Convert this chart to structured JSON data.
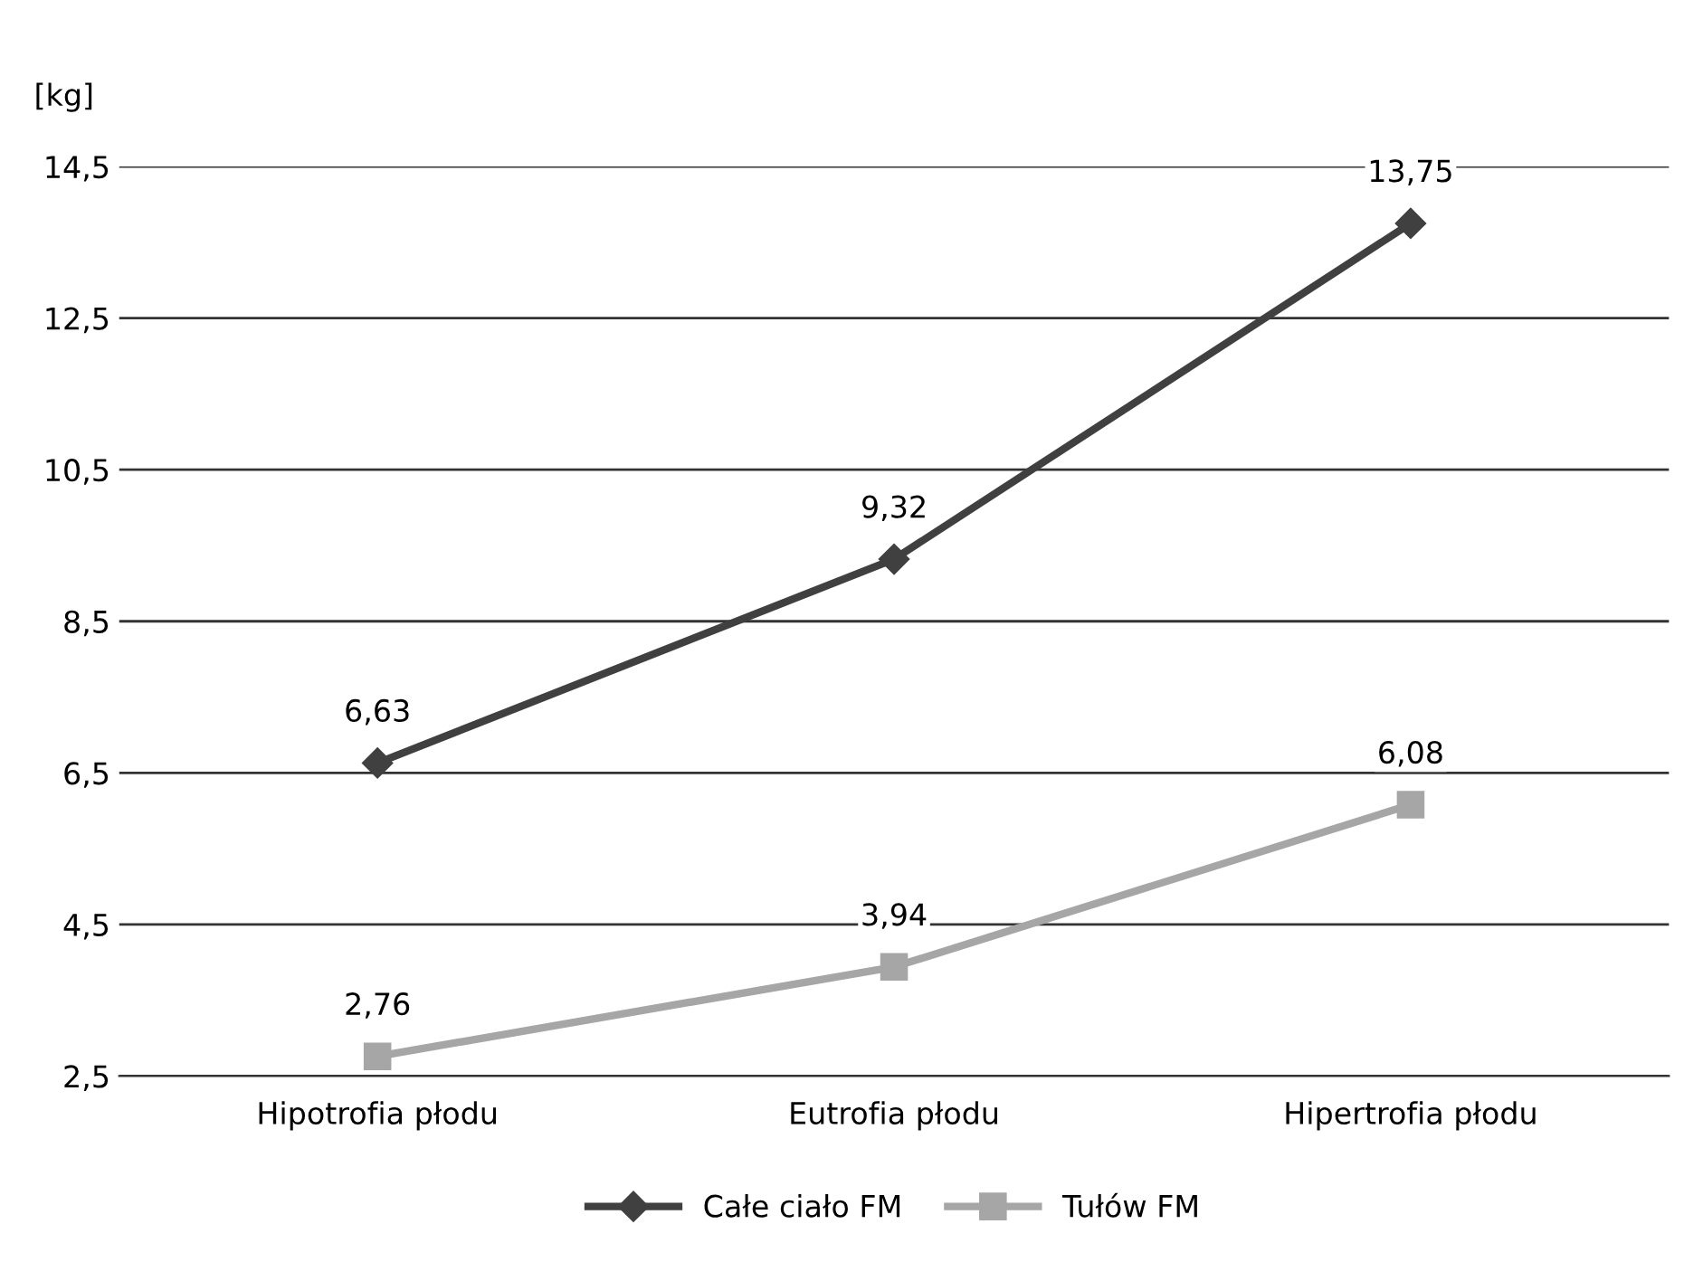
{
  "chart_data": {
    "type": "line",
    "ylabel": "[kg]",
    "categories": [
      "Hipotrofia płodu",
      "Eutrofia płodu",
      "Hipertrofia płodu"
    ],
    "series": [
      {
        "name": "Całe ciało FM",
        "color": "#404040",
        "marker": "diamond",
        "values": [
          6.63,
          9.32,
          13.75
        ],
        "value_labels": [
          "6,63",
          "9,32",
          "13,75"
        ]
      },
      {
        "name": "Tułów FM",
        "color": "#a6a6a6",
        "marker": "square",
        "values": [
          2.76,
          3.94,
          6.08
        ],
        "value_labels": [
          "2,76",
          "3,94",
          "6,08"
        ]
      }
    ],
    "ylim": [
      2.5,
      14.5
    ],
    "yticks": [
      {
        "value": 2.5,
        "label": "2,5"
      },
      {
        "value": 4.5,
        "label": "4,5"
      },
      {
        "value": 6.5,
        "label": "6,5"
      },
      {
        "value": 8.5,
        "label": "8,5"
      },
      {
        "value": 10.5,
        "label": "10,5"
      },
      {
        "value": 12.5,
        "label": "12,5"
      },
      {
        "value": 14.5,
        "label": "14,5"
      }
    ],
    "grid": "y",
    "legend": "bottom",
    "line_style": "solid"
  }
}
